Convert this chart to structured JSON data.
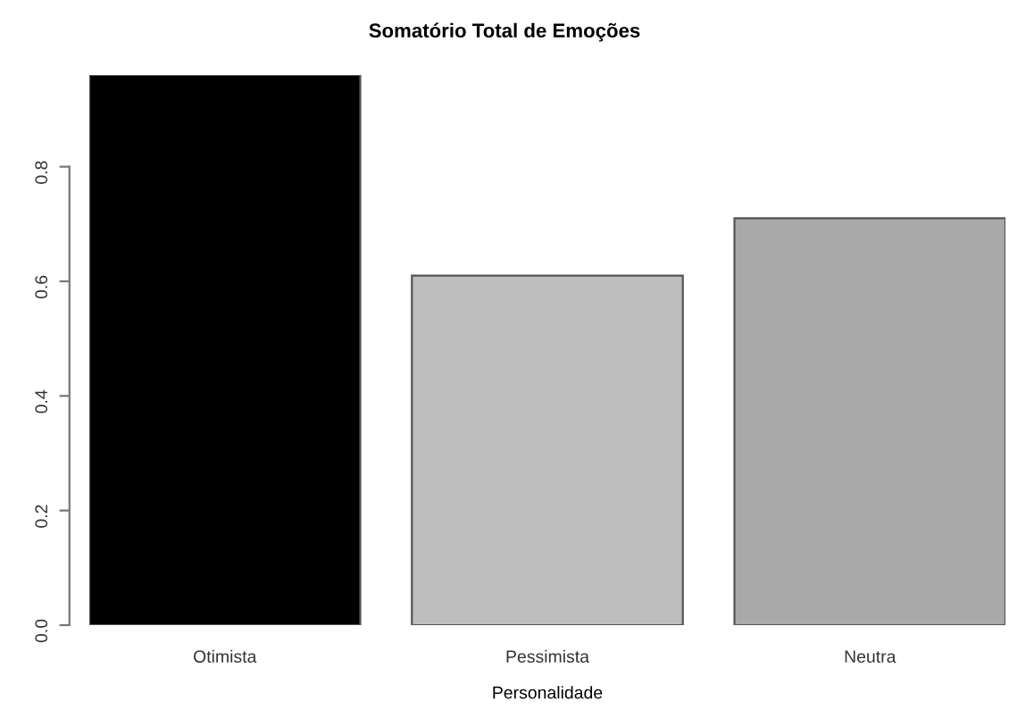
{
  "chart_data": {
    "type": "bar",
    "title": "Somatório Total de Emoções",
    "xlabel": "Personalidade",
    "categories": [
      "Otimista",
      "Pessimista",
      "Neutra"
    ],
    "values": [
      0.96,
      0.61,
      0.71
    ],
    "colors": [
      "#000000",
      "#bebebe",
      "#a9a9a9"
    ],
    "ylim": [
      0,
      0.96
    ],
    "yticks": [
      {
        "value": 0,
        "label": "0.0"
      },
      0.2,
      0.4,
      0.6,
      0.8
    ],
    "grid": false,
    "legend": false
  }
}
